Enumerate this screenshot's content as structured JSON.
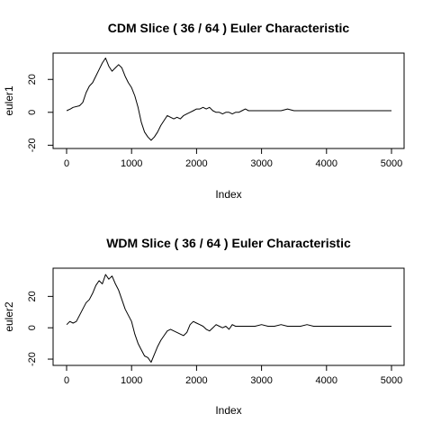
{
  "chart_data": [
    {
      "type": "line",
      "title": "CDM Slice ( 36 / 64 ) Euler Characteristic",
      "xlabel": "Index",
      "ylabel": "euler1",
      "xlim": [
        0,
        5000
      ],
      "ylim": [
        -22,
        36
      ],
      "xticks": [
        0,
        1000,
        2000,
        3000,
        4000,
        5000
      ],
      "yticks": [
        -20,
        0,
        20
      ],
      "xtick_labels": [
        "0",
        "1000",
        "2000",
        "3000",
        "4000",
        "5000"
      ],
      "ytick_labels": [
        "-20",
        "0",
        "20"
      ],
      "grid": false,
      "series": [
        {
          "x": [
            1,
            60,
            100,
            200,
            250,
            300,
            350,
            400,
            450,
            500,
            550,
            600,
            650,
            700,
            750,
            800,
            850,
            900,
            950,
            1000,
            1050,
            1100,
            1150,
            1200,
            1250,
            1300,
            1350,
            1400,
            1450,
            1500,
            1550,
            1600,
            1650,
            1700,
            1750,
            1800,
            1850,
            1900,
            1950,
            2000,
            2050,
            2100,
            2150,
            2200,
            2250,
            2300,
            2350,
            2400,
            2450,
            2500,
            2550,
            2600,
            2650,
            2700,
            2750,
            2800,
            2900,
            3000,
            3100,
            3200,
            3300,
            3400,
            3500,
            3700,
            4000,
            4500,
            5000
          ],
          "y": [
            1,
            2,
            3,
            4,
            6,
            12,
            16,
            18,
            22,
            26,
            30,
            33,
            28,
            25,
            27,
            29,
            27,
            22,
            18,
            15,
            10,
            3,
            -6,
            -12,
            -15,
            -17,
            -15,
            -12,
            -8,
            -5,
            -2,
            -3,
            -4,
            -3,
            -4,
            -2,
            -1,
            0,
            1,
            2,
            2,
            3,
            2,
            3,
            1,
            0,
            0,
            -1,
            0,
            0,
            -1,
            0,
            0,
            1,
            2,
            1,
            1,
            1,
            1,
            1,
            1,
            2,
            1,
            1,
            1,
            1,
            1
          ]
        }
      ]
    },
    {
      "type": "line",
      "title": "WDM Slice ( 36 / 64 ) Euler Characteristic",
      "xlabel": "Index",
      "ylabel": "euler2",
      "xlim": [
        0,
        5000
      ],
      "ylim": [
        -24,
        38
      ],
      "xticks": [
        0,
        1000,
        2000,
        3000,
        4000,
        5000
      ],
      "yticks": [
        -20,
        0,
        20
      ],
      "xtick_labels": [
        "0",
        "1000",
        "2000",
        "3000",
        "4000",
        "5000"
      ],
      "ytick_labels": [
        "-20",
        "0",
        "20"
      ],
      "grid": false,
      "series": [
        {
          "x": [
            1,
            50,
            100,
            150,
            200,
            250,
            300,
            350,
            400,
            450,
            500,
            550,
            600,
            650,
            700,
            750,
            800,
            850,
            900,
            950,
            1000,
            1050,
            1100,
            1150,
            1200,
            1250,
            1300,
            1350,
            1400,
            1450,
            1500,
            1550,
            1600,
            1650,
            1700,
            1750,
            1800,
            1850,
            1900,
            1950,
            2000,
            2050,
            2100,
            2150,
            2200,
            2250,
            2300,
            2350,
            2400,
            2450,
            2500,
            2550,
            2600,
            2700,
            2800,
            2900,
            3000,
            3100,
            3200,
            3300,
            3400,
            3500,
            3600,
            3700,
            3800,
            4000,
            4500,
            5000
          ],
          "y": [
            2,
            4,
            3,
            4,
            8,
            12,
            16,
            18,
            22,
            27,
            30,
            28,
            34,
            31,
            33,
            28,
            24,
            18,
            12,
            8,
            4,
            -4,
            -10,
            -14,
            -18,
            -19,
            -22,
            -17,
            -12,
            -8,
            -5,
            -2,
            -1,
            -2,
            -3,
            -4,
            -5,
            -3,
            2,
            4,
            3,
            2,
            1,
            -1,
            -2,
            0,
            2,
            1,
            0,
            1,
            -1,
            2,
            1,
            1,
            1,
            1,
            2,
            1,
            1,
            2,
            1,
            1,
            1,
            2,
            1,
            1,
            1,
            1
          ]
        }
      ]
    }
  ]
}
